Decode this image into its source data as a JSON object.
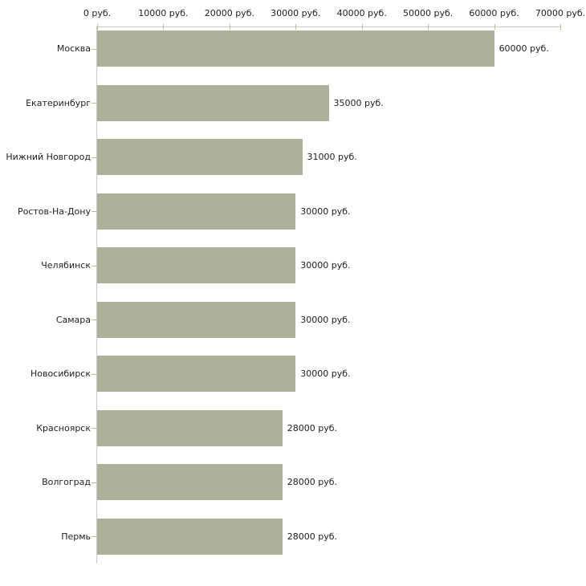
{
  "chart_data": {
    "type": "bar",
    "orientation": "horizontal",
    "title": "",
    "categories": [
      "Москва",
      "Екатеринбург",
      "Нижний Новгород",
      "Ростов-На-Дону",
      "Челябинск",
      "Самара",
      "Новосибирск",
      "Красноярск",
      "Волгоград",
      "Пермь"
    ],
    "values": [
      60000,
      35000,
      31000,
      30000,
      30000,
      30000,
      30000,
      28000,
      28000,
      28000
    ],
    "value_labels": [
      "60000 руб.",
      "35000 руб.",
      "31000 руб.",
      "30000 руб.",
      "30000 руб.",
      "30000 руб.",
      "30000 руб.",
      "28000 руб.",
      "28000 руб.",
      "28000 руб."
    ],
    "x_axis": {
      "position": "top",
      "min": 0,
      "max": 70000,
      "ticks": [
        0,
        10000,
        20000,
        30000,
        40000,
        50000,
        60000,
        70000
      ],
      "tick_labels": [
        "0 руб.",
        "10000 руб.",
        "20000 руб.",
        "30000 руб.",
        "40000 руб.",
        "50000 руб.",
        "60000 руб.",
        "70000 руб."
      ]
    },
    "grid": false,
    "legend": false,
    "colors": {
      "bar": "#acb199",
      "axis_line": "#c9c9c9",
      "tick": "#bcbc8a",
      "text": "#222222",
      "background": "#ffffff"
    }
  }
}
